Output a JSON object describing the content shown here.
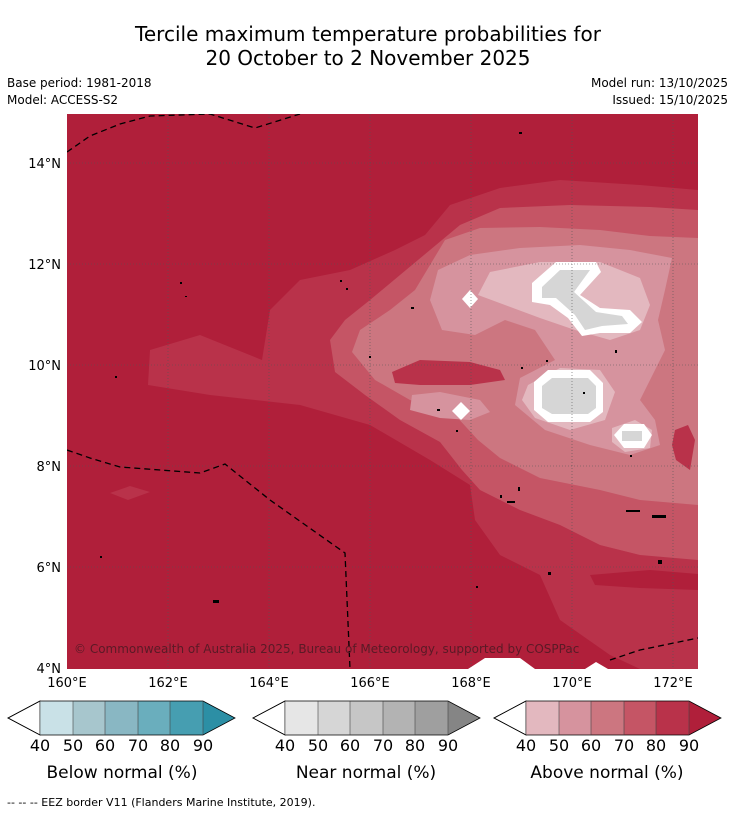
{
  "title": {
    "line1": "Tercile maximum temperature probabilities for",
    "line2": "20 October to 2 November 2025"
  },
  "meta": {
    "base_period": "Base period: 1981-2018",
    "model": "Model: ACCESS-S2",
    "model_run": "Model run: 13/10/2025",
    "issued": "Issued: 15/10/2025"
  },
  "map": {
    "lat_labels": [
      "14°N",
      "12°N",
      "10°N",
      "8°N",
      "6°N",
      "4°N"
    ],
    "lon_labels": [
      "160°E",
      "162°E",
      "164°E",
      "166°E",
      "168°E",
      "170°E",
      "172°E"
    ],
    "copyright": "© Commonwealth of Australia 2025, Bureau of Meteorology, supported by COSPPac"
  },
  "legends": [
    {
      "name": "below",
      "label": "Below normal (%)",
      "ticks": [
        "40",
        "50",
        "60",
        "70",
        "80",
        "90"
      ],
      "colors": [
        "#c9e1e7",
        "#a7c6cd",
        "#89b7c3",
        "#6aaebd",
        "#469eb1",
        "#2c8fa5"
      ]
    },
    {
      "name": "near",
      "label": "Near normal (%)",
      "ticks": [
        "40",
        "50",
        "60",
        "70",
        "80",
        "90"
      ],
      "colors": [
        "#e6e6e6",
        "#d6d6d6",
        "#c6c6c6",
        "#b3b3b3",
        "#9f9f9f",
        "#858585"
      ]
    },
    {
      "name": "above",
      "label": "Above normal (%)",
      "ticks": [
        "40",
        "50",
        "60",
        "70",
        "80",
        "90"
      ],
      "colors": [
        "#e3b8bf",
        "#d6939e",
        "#cc7680",
        "#c55565",
        "#b9324a",
        "#b01f3a"
      ]
    }
  ],
  "footnote": "--  --  -- EEZ border V11 (Flanders Marine Institute, 2019)."
}
